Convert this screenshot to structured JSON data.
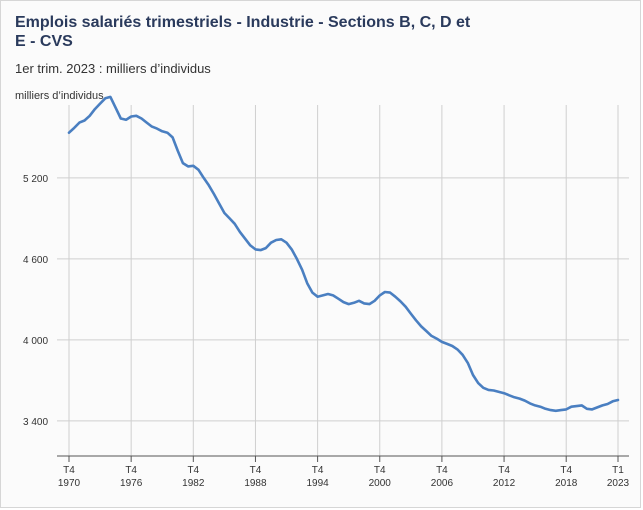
{
  "title": "Emplois salariés trimestriels - Industrie - Sections B, C, D et E - CVS",
  "subtitle": "1er trim. 2023 : milliers d’individus",
  "chart_data": {
    "type": "line",
    "ylabel": "milliers d’individus",
    "ylim": [
      3140,
      5740
    ],
    "xlim": [
      1970.0,
      2023.4
    ],
    "yticks": [
      {
        "value": 3400,
        "label": "3 400"
      },
      {
        "value": 4000,
        "label": "4 000"
      },
      {
        "value": 4600,
        "label": "4 600"
      },
      {
        "value": 5200,
        "label": "5 200"
      }
    ],
    "xticks": [
      {
        "value": 1970.0,
        "q": "T4",
        "year": "1970"
      },
      {
        "value": 1976.0,
        "q": "T4",
        "year": "1976"
      },
      {
        "value": 1982.0,
        "q": "T4",
        "year": "1982"
      },
      {
        "value": 1988.0,
        "q": "T4",
        "year": "1988"
      },
      {
        "value": 1994.0,
        "q": "T4",
        "year": "1994"
      },
      {
        "value": 2000.0,
        "q": "T4",
        "year": "2000"
      },
      {
        "value": 2006.0,
        "q": "T4",
        "year": "2006"
      },
      {
        "value": 2012.0,
        "q": "T4",
        "year": "2012"
      },
      {
        "value": 2018.0,
        "q": "T4",
        "year": "2018"
      },
      {
        "value": 2023.0,
        "q": "T1",
        "year": "2023"
      }
    ],
    "grid": true,
    "series": [
      {
        "color": "#4a7fc1",
        "points": [
          [
            1970.0,
            5535
          ],
          [
            1970.5,
            5570
          ],
          [
            1971.0,
            5610
          ],
          [
            1971.5,
            5625
          ],
          [
            1972.0,
            5660
          ],
          [
            1972.5,
            5710
          ],
          [
            1973.0,
            5750
          ],
          [
            1973.5,
            5790
          ],
          [
            1974.0,
            5800
          ],
          [
            1974.5,
            5720
          ],
          [
            1975.0,
            5640
          ],
          [
            1975.5,
            5630
          ],
          [
            1976.0,
            5655
          ],
          [
            1976.5,
            5660
          ],
          [
            1977.0,
            5640
          ],
          [
            1977.5,
            5610
          ],
          [
            1978.0,
            5580
          ],
          [
            1978.5,
            5565
          ],
          [
            1979.0,
            5545
          ],
          [
            1979.5,
            5535
          ],
          [
            1980.0,
            5500
          ],
          [
            1980.5,
            5400
          ],
          [
            1981.0,
            5310
          ],
          [
            1981.5,
            5285
          ],
          [
            1982.0,
            5290
          ],
          [
            1982.5,
            5260
          ],
          [
            1983.0,
            5200
          ],
          [
            1983.5,
            5145
          ],
          [
            1984.0,
            5080
          ],
          [
            1984.5,
            5010
          ],
          [
            1985.0,
            4940
          ],
          [
            1985.5,
            4900
          ],
          [
            1986.0,
            4860
          ],
          [
            1986.5,
            4800
          ],
          [
            1987.0,
            4750
          ],
          [
            1987.5,
            4700
          ],
          [
            1988.0,
            4670
          ],
          [
            1988.5,
            4665
          ],
          [
            1989.0,
            4680
          ],
          [
            1989.5,
            4720
          ],
          [
            1990.0,
            4740
          ],
          [
            1990.5,
            4745
          ],
          [
            1991.0,
            4720
          ],
          [
            1991.5,
            4670
          ],
          [
            1992.0,
            4600
          ],
          [
            1992.5,
            4520
          ],
          [
            1993.0,
            4420
          ],
          [
            1993.5,
            4350
          ],
          [
            1994.0,
            4320
          ],
          [
            1994.5,
            4330
          ],
          [
            1995.0,
            4340
          ],
          [
            1995.5,
            4330
          ],
          [
            1996.0,
            4305
          ],
          [
            1996.5,
            4280
          ],
          [
            1997.0,
            4265
          ],
          [
            1997.5,
            4275
          ],
          [
            1998.0,
            4290
          ],
          [
            1998.5,
            4270
          ],
          [
            1999.0,
            4265
          ],
          [
            1999.5,
            4290
          ],
          [
            2000.0,
            4330
          ],
          [
            2000.5,
            4355
          ],
          [
            2001.0,
            4350
          ],
          [
            2001.5,
            4320
          ],
          [
            2002.0,
            4285
          ],
          [
            2002.5,
            4245
          ],
          [
            2003.0,
            4195
          ],
          [
            2003.5,
            4145
          ],
          [
            2004.0,
            4100
          ],
          [
            2004.5,
            4065
          ],
          [
            2005.0,
            4030
          ],
          [
            2005.5,
            4010
          ],
          [
            2006.0,
            3985
          ],
          [
            2006.5,
            3970
          ],
          [
            2007.0,
            3955
          ],
          [
            2007.5,
            3930
          ],
          [
            2008.0,
            3890
          ],
          [
            2008.5,
            3830
          ],
          [
            2009.0,
            3740
          ],
          [
            2009.5,
            3680
          ],
          [
            2010.0,
            3645
          ],
          [
            2010.5,
            3630
          ],
          [
            2011.0,
            3625
          ],
          [
            2011.5,
            3615
          ],
          [
            2012.0,
            3605
          ],
          [
            2012.5,
            3590
          ],
          [
            2013.0,
            3575
          ],
          [
            2013.5,
            3565
          ],
          [
            2014.0,
            3550
          ],
          [
            2014.5,
            3530
          ],
          [
            2015.0,
            3515
          ],
          [
            2015.5,
            3505
          ],
          [
            2016.0,
            3490
          ],
          [
            2016.5,
            3480
          ],
          [
            2017.0,
            3475
          ],
          [
            2017.5,
            3480
          ],
          [
            2018.0,
            3485
          ],
          [
            2018.5,
            3505
          ],
          [
            2019.0,
            3510
          ],
          [
            2019.5,
            3515
          ],
          [
            2020.0,
            3490
          ],
          [
            2020.5,
            3485
          ],
          [
            2021.0,
            3500
          ],
          [
            2021.5,
            3515
          ],
          [
            2022.0,
            3525
          ],
          [
            2022.5,
            3545
          ],
          [
            2023.0,
            3555
          ]
        ]
      }
    ]
  }
}
